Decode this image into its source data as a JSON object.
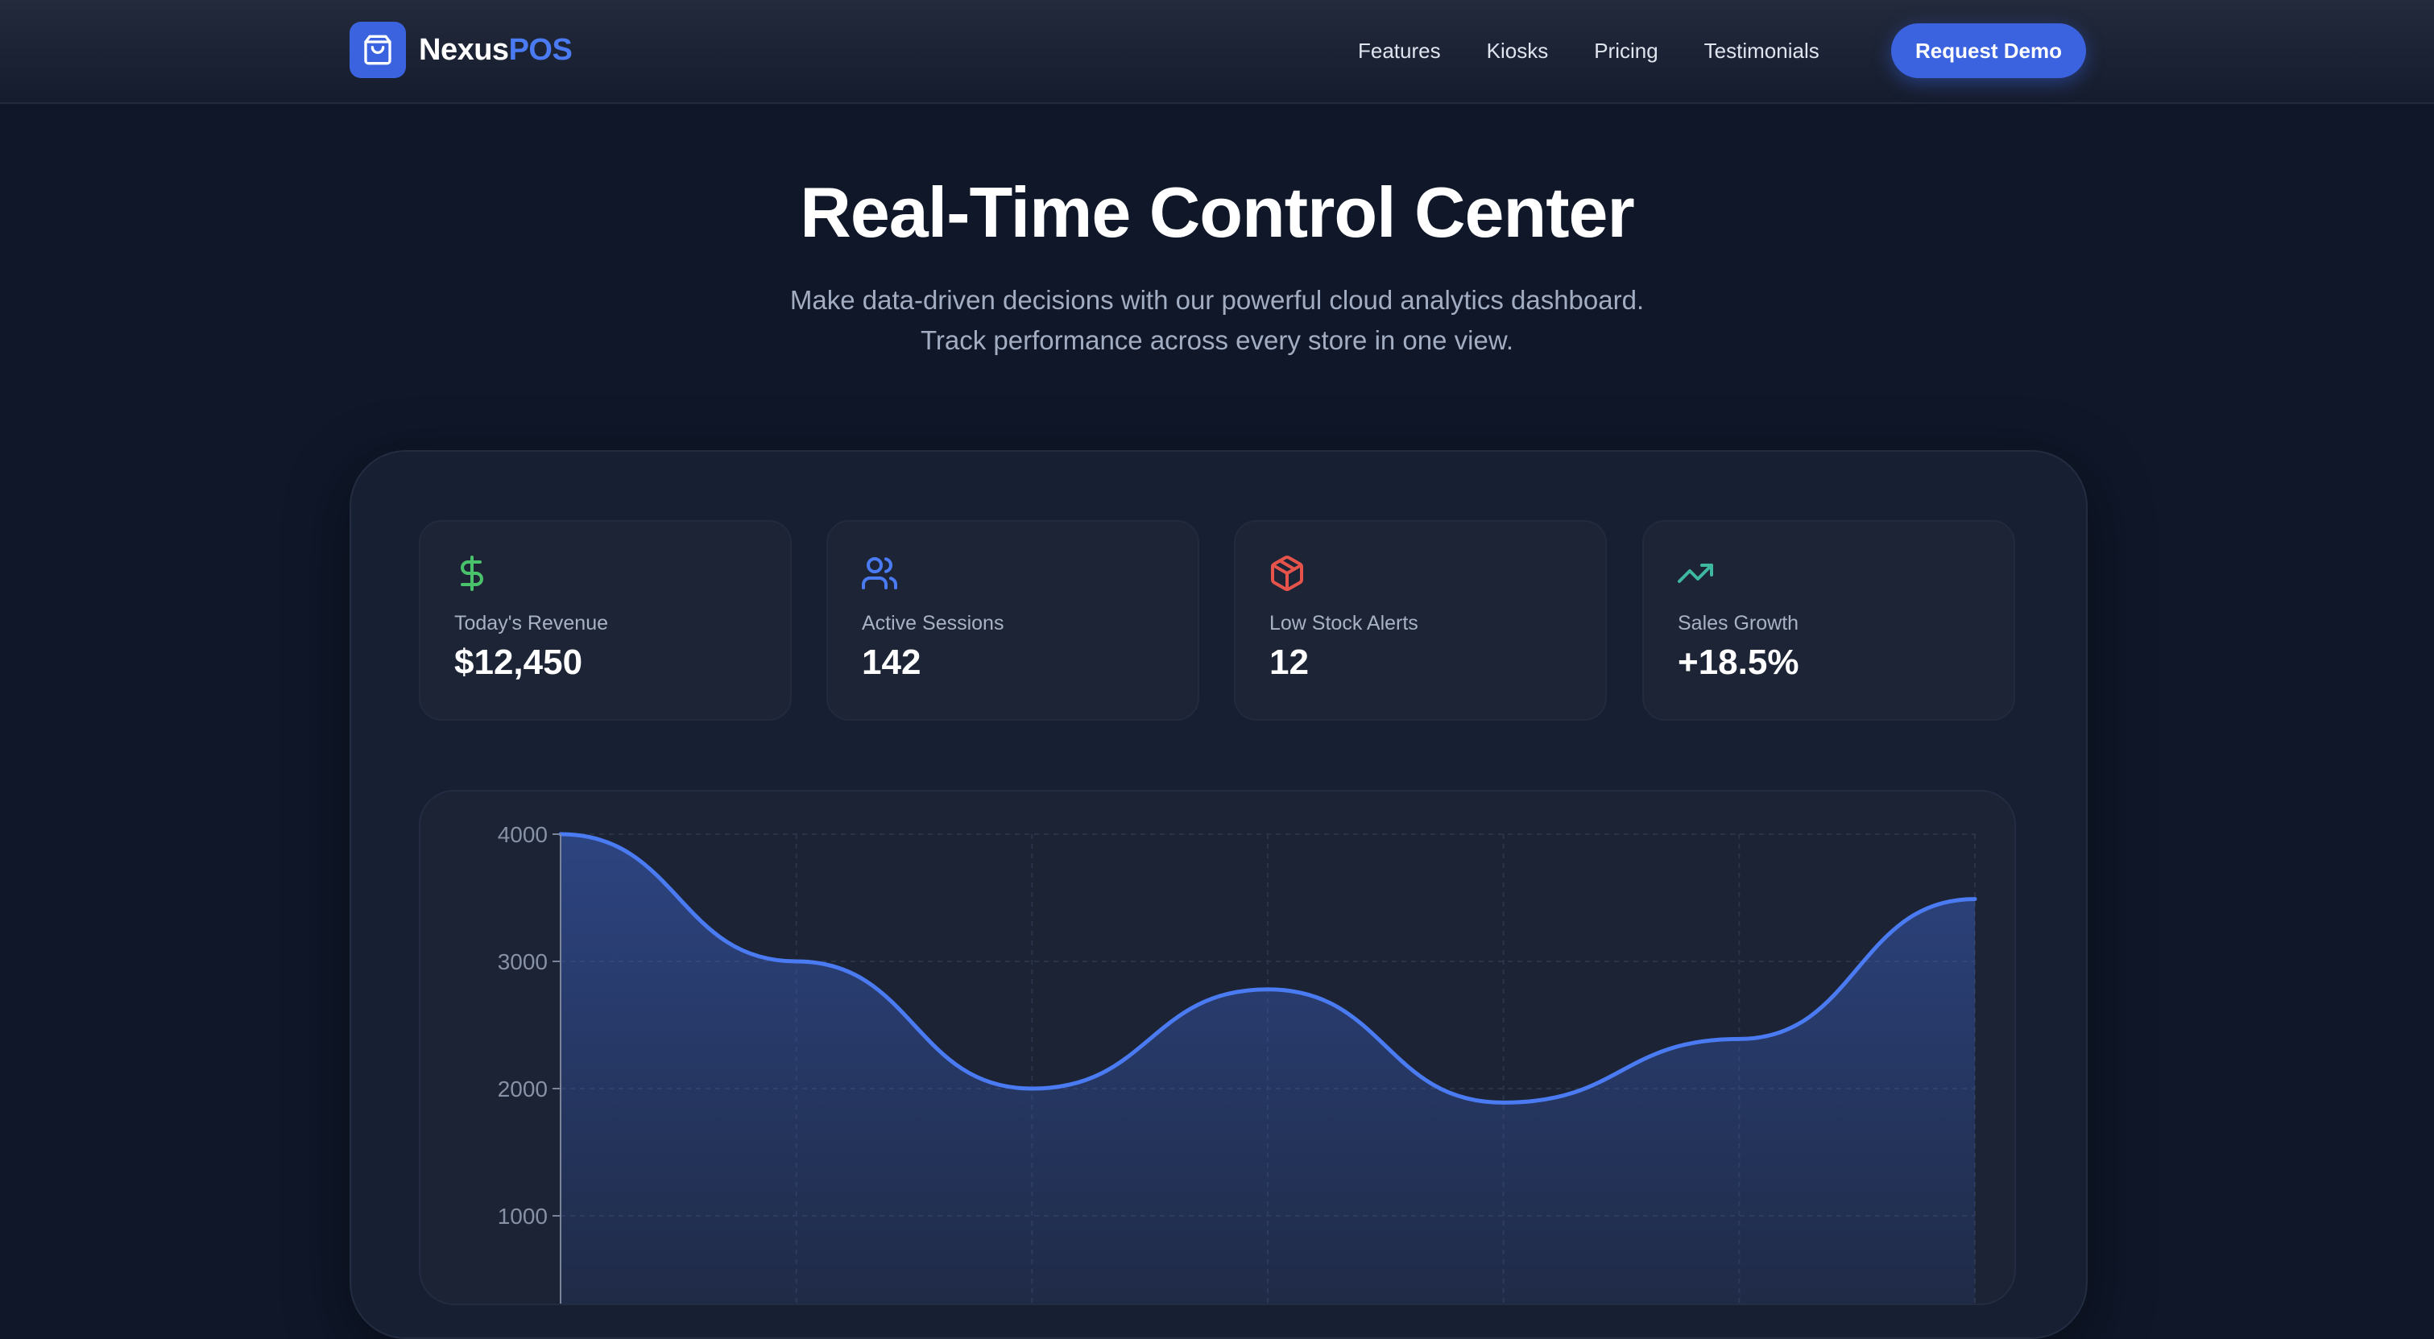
{
  "brand": {
    "name_main": "Nexus",
    "name_accent": "POS",
    "icon": "shopping-bag-icon",
    "accent_color": "#3b63e0"
  },
  "nav": {
    "links": [
      "Features",
      "Kiosks",
      "Pricing",
      "Testimonials"
    ],
    "cta_label": "Request Demo"
  },
  "hero": {
    "title": "Real-Time Control Center",
    "subtitle_line1": "Make data-driven decisions with our powerful cloud analytics dashboard.",
    "subtitle_line2": "Track performance across every store in one view."
  },
  "stats": [
    {
      "icon": "dollar-icon",
      "label": "Today's Revenue",
      "value": "$12,450",
      "color": "#4ac26b"
    },
    {
      "icon": "users-icon",
      "label": "Active Sessions",
      "value": "142",
      "color": "#4a7bf2"
    },
    {
      "icon": "package-icon",
      "label": "Low Stock Alerts",
      "value": "12",
      "color": "#e5534b"
    },
    {
      "icon": "trending-up-icon",
      "label": "Sales Growth",
      "value": "+18.5%",
      "color": "#3fb8a0"
    }
  ],
  "chart_data": {
    "type": "area",
    "x": [
      0,
      1,
      2,
      3,
      4,
      5,
      6
    ],
    "series": [
      {
        "values": [
          4000,
          3000,
          2000,
          2780,
          1890,
          2390,
          3490
        ]
      }
    ],
    "yticks": [
      1000,
      2000,
      3000,
      4000
    ],
    "ylim": [
      0,
      4000
    ],
    "grid": true,
    "line_color": "#4a7bf2"
  }
}
